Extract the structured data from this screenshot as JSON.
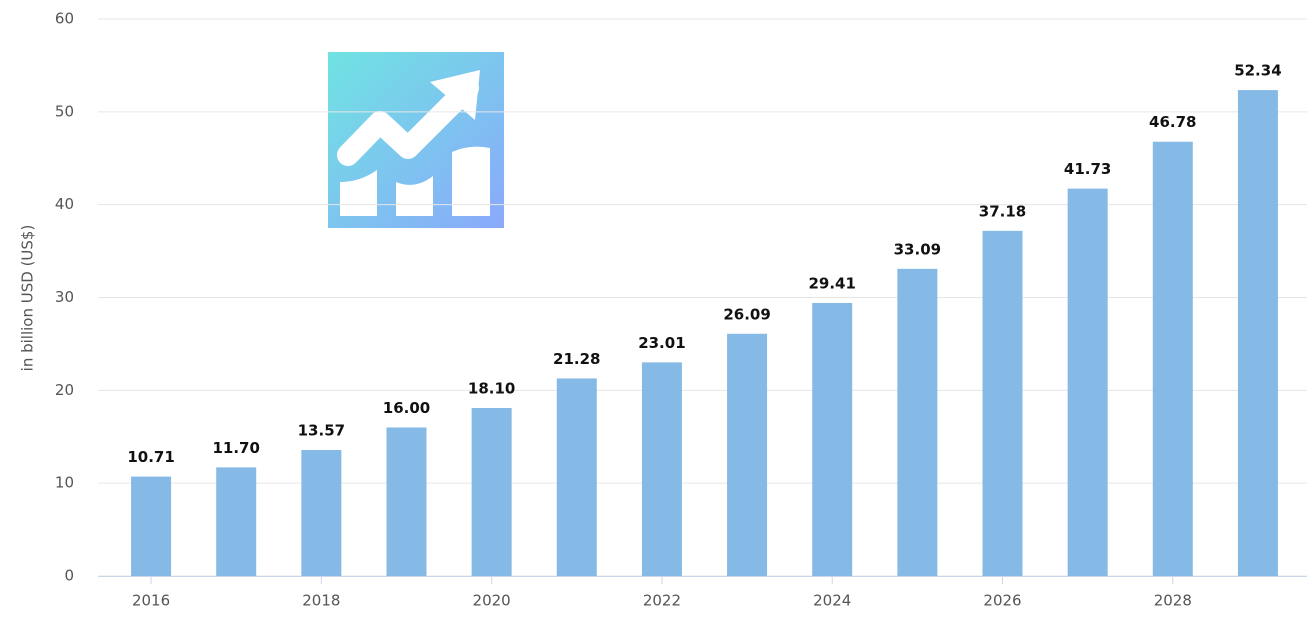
{
  "chart_data": {
    "type": "bar",
    "y_axis_label": "in billion USD (US$)",
    "categories": [
      "2016",
      null,
      "2018",
      null,
      "2020",
      null,
      "2022",
      null,
      "2024",
      null,
      "2026",
      null,
      "2028",
      null
    ],
    "values": [
      10.71,
      11.7,
      13.57,
      16.0,
      18.1,
      21.28,
      23.01,
      26.09,
      29.41,
      33.09,
      37.18,
      41.73,
      46.78,
      52.34
    ],
    "value_labels": [
      "10.71",
      "11.70",
      "13.57",
      "16.00",
      "18.10",
      "21.28",
      "23.01",
      "26.09",
      "29.41",
      "33.09",
      "37.18",
      "41.73",
      "46.78",
      "52.34"
    ],
    "color": "#85b9e6",
    "ylim": [
      0,
      60
    ],
    "yticks": [
      0,
      10,
      20,
      30,
      40,
      50,
      60
    ],
    "grid": true
  }
}
